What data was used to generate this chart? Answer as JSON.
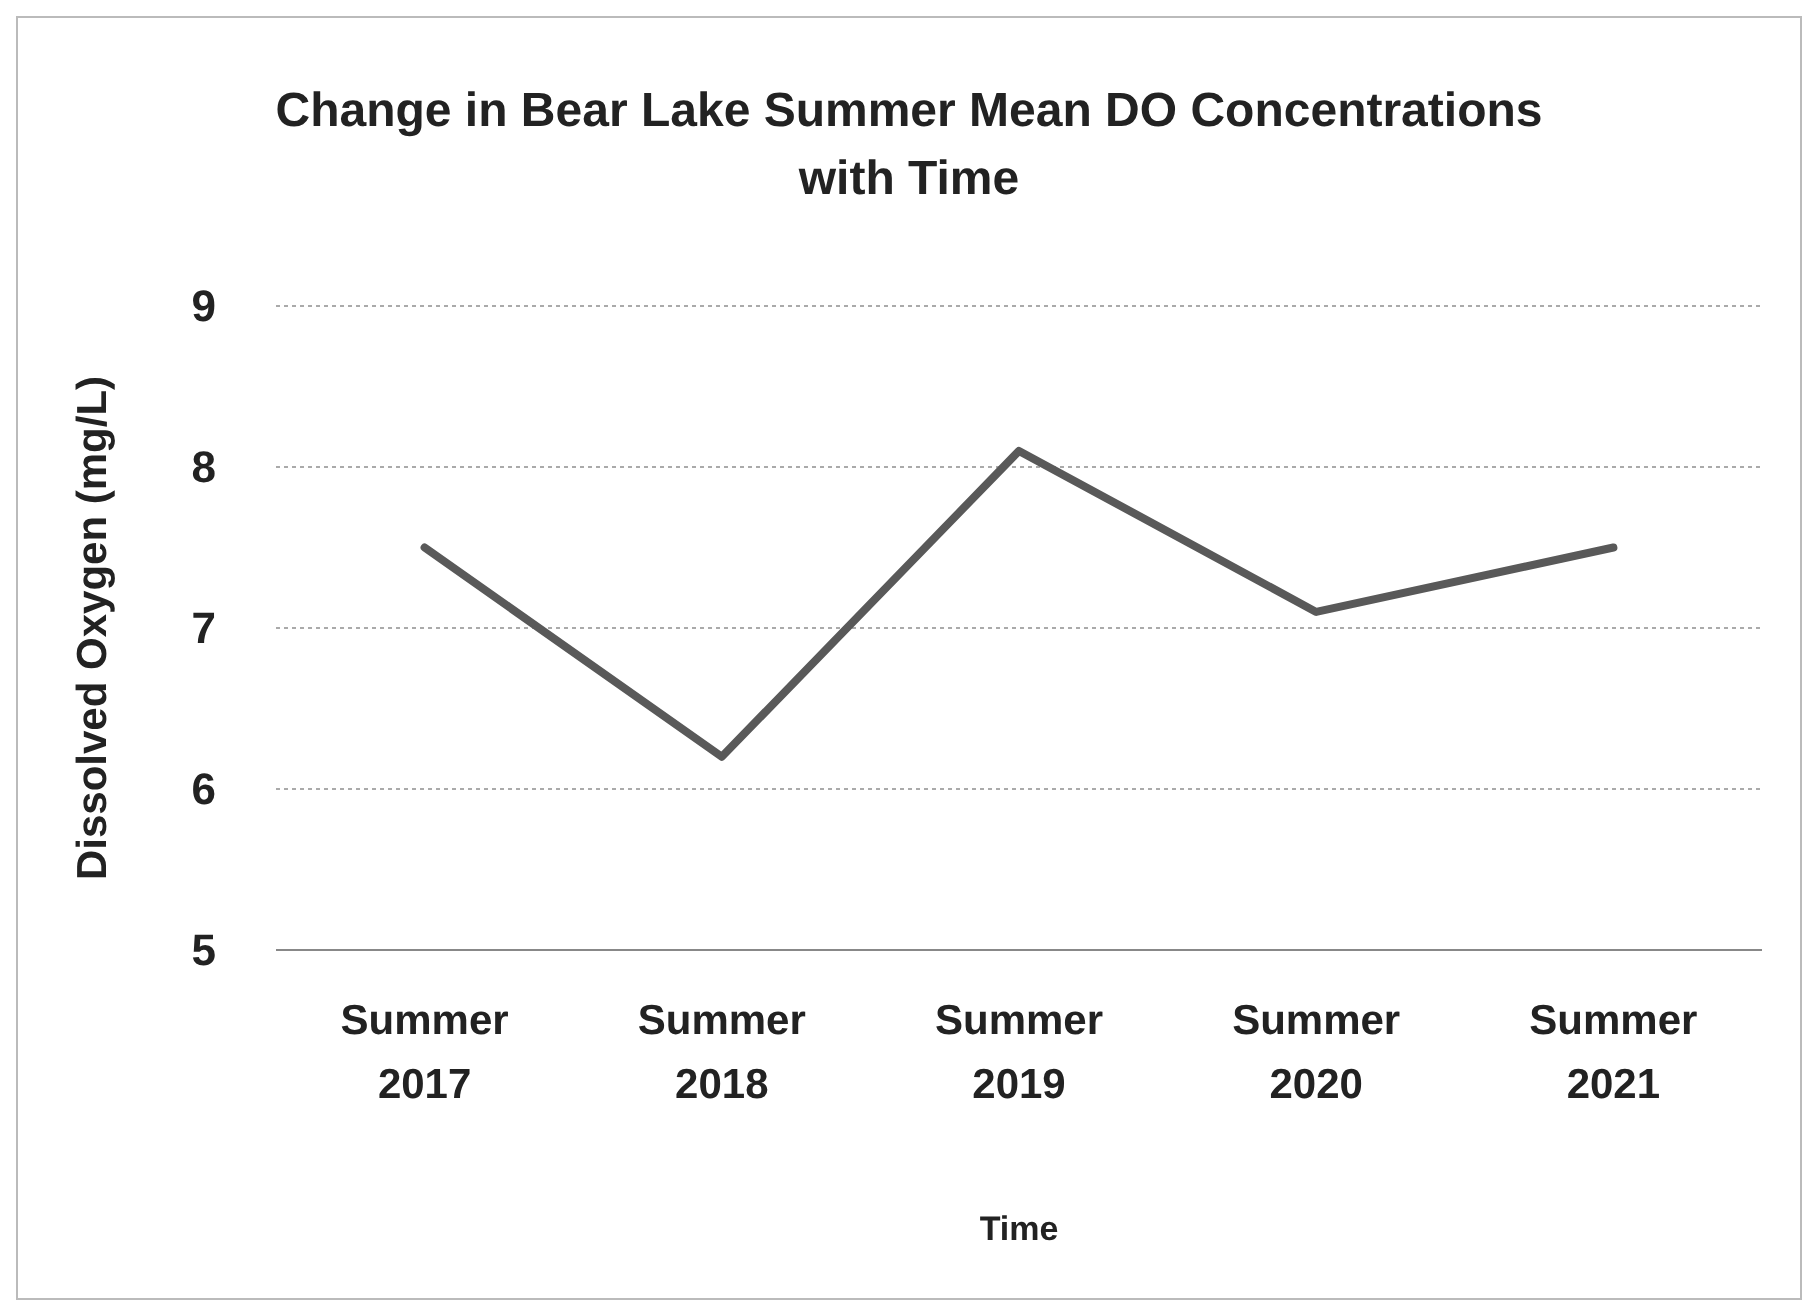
{
  "chart_data": {
    "type": "line",
    "title": "Change in Bear Lake Summer Mean DO Concentrations with Time",
    "xlabel": "Time",
    "ylabel": "Dissolved Oxygen (mg/L)",
    "categories": [
      "Summer 2017",
      "Summer 2018",
      "Summer 2019",
      "Summer 2020",
      "Summer 2021"
    ],
    "series": [
      {
        "color": "#595959",
        "values": [
          7.5,
          6.2,
          8.1,
          7.1,
          7.5
        ]
      }
    ],
    "ylim": [
      5,
      9
    ],
    "yticks": [
      5,
      6,
      7,
      8,
      9
    ],
    "grid": "y",
    "marker": "none",
    "line_style": "solid"
  }
}
